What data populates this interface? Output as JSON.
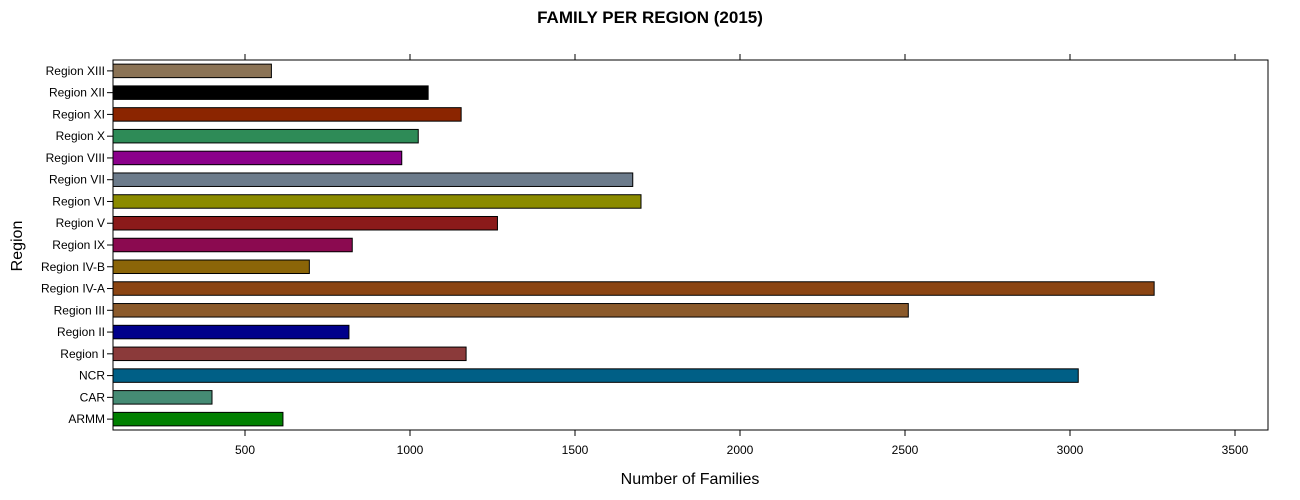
{
  "chart_data": {
    "type": "bar",
    "orientation": "horizontal",
    "title": "FAMILY PER REGION (2015)",
    "xlabel": "Number of Families",
    "ylabel": "Region",
    "xlim": [
      100,
      3600
    ],
    "xticks": [
      500,
      1000,
      1500,
      2000,
      2500,
      3000,
      3500
    ],
    "grid": false,
    "categories": [
      "ARMM",
      "CAR",
      "NCR",
      "Region I",
      "Region II",
      "Region III",
      "Region IV-A",
      "Region IV-B",
      "Region IX",
      "Region V",
      "Region VI",
      "Region VII",
      "Region VIII",
      "Region X",
      "Region XI",
      "Region XII",
      "Region XIII"
    ],
    "values": [
      615,
      400,
      3025,
      1170,
      815,
      2510,
      3255,
      695,
      825,
      1265,
      1700,
      1675,
      975,
      1025,
      1155,
      1055,
      580
    ],
    "colors": [
      "#008000",
      "#458b74",
      "#005f86",
      "#8b3a3a",
      "#00008b",
      "#8b5a2b",
      "#8b4513",
      "#8b6508",
      "#8b0a50",
      "#8b1a1a",
      "#8b8b00",
      "#6c7b8b",
      "#8b008b",
      "#2e8b57",
      "#8b2500",
      "#000000",
      "#8b7355"
    ]
  }
}
